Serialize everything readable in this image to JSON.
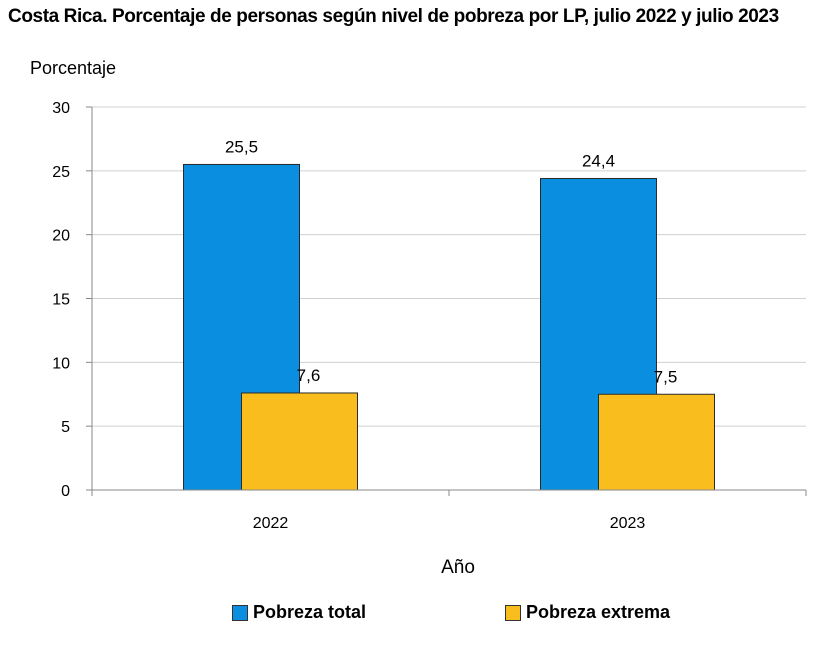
{
  "chart_data": {
    "type": "bar",
    "title": "Costa Rica. Porcentaje de personas según nivel de pobreza por LP, julio 2022 y julio 2023",
    "ylabel": "Porcentaje",
    "xlabel": "Año",
    "categories": [
      "2022",
      "2023"
    ],
    "ylim": [
      0,
      30
    ],
    "yticks": [
      0,
      5,
      10,
      15,
      20,
      25,
      30
    ],
    "grid": true,
    "legend_position": "bottom",
    "series": [
      {
        "name": "Pobreza total",
        "color": "#0A8FE0",
        "values": [
          25.5,
          24.4
        ],
        "labels": [
          "25,5",
          "24,4"
        ]
      },
      {
        "name": "Pobreza extrema",
        "color": "#F9BE1E",
        "values": [
          7.6,
          7.5
        ],
        "labels": [
          "7,6",
          "7,5"
        ]
      }
    ]
  }
}
